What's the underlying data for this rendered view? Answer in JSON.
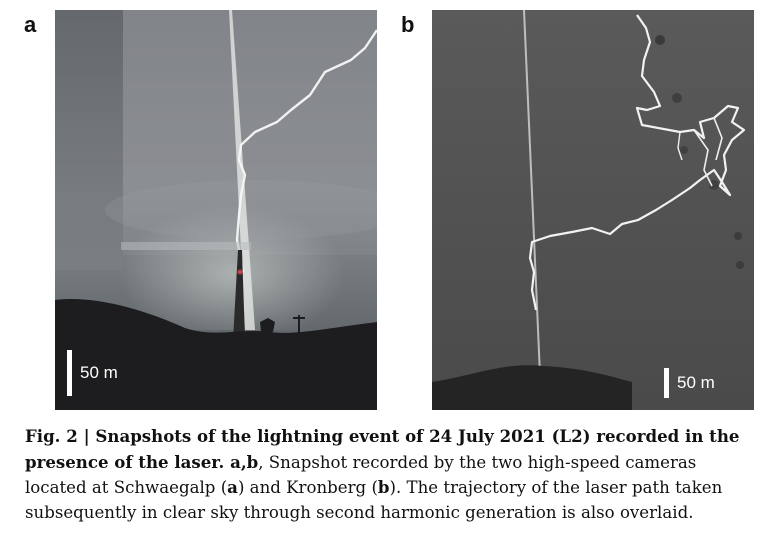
{
  "panels": [
    {
      "label": "a",
      "scale_text": "50 m"
    },
    {
      "label": "b",
      "scale_text": "50 m"
    }
  ],
  "caption": {
    "fig_label": "Fig. 2 | ",
    "title": "Snapshots of the lightning event of 24 July 2021 (L2) recorded in the presence of the laser.",
    "panel_ref": " a,b",
    "text_1": ", Snapshot recorded by the two high-speed cameras located at Schwaegalp (",
    "ref_a": "a",
    "text_2": ") and Kronberg (",
    "ref_b": "b",
    "text_3": "). The trajectory of the laser path taken subsequently in clear sky through second harmonic generation is also overlaid."
  }
}
